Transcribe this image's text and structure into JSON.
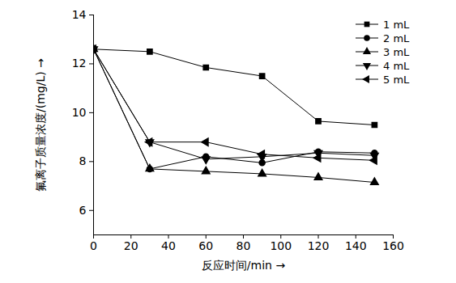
{
  "chart_data": {
    "type": "line",
    "x_label": "反应时间/min",
    "y_label": "氟离子质量浓度/(mg/L)",
    "x": [
      0,
      30,
      60,
      90,
      120,
      150
    ],
    "series": [
      {
        "name": "1 mL",
        "color": "#000000",
        "marker": "square",
        "values": [
          12.6,
          12.5,
          11.85,
          11.5,
          9.65,
          9.5
        ]
      },
      {
        "name": "2 mL",
        "color": "#000000",
        "marker": "circle",
        "values": [
          12.6,
          7.7,
          8.2,
          7.95,
          8.4,
          8.35
        ]
      },
      {
        "name": "3 mL",
        "color": "#000000",
        "marker": "triangle",
        "values": [
          12.6,
          7.7,
          7.6,
          7.5,
          7.35,
          7.15
        ]
      },
      {
        "name": "4 mL",
        "color": "#000000",
        "marker": "triangle-down",
        "values": [
          12.6,
          8.8,
          8.1,
          8.2,
          8.35,
          8.25
        ]
      },
      {
        "name": "5 mL",
        "color": "#000000",
        "marker": "triangle-left",
        "values": [
          12.6,
          8.8,
          8.8,
          8.3,
          8.15,
          8.05
        ]
      }
    ],
    "xlim": [
      0,
      160
    ],
    "xticks": [
      0,
      20,
      40,
      60,
      80,
      100,
      120,
      140,
      160
    ],
    "ylim": [
      5,
      14
    ],
    "yticks": [
      6,
      8,
      10,
      12,
      14
    ],
    "grid": false,
    "legend": "upper right"
  }
}
